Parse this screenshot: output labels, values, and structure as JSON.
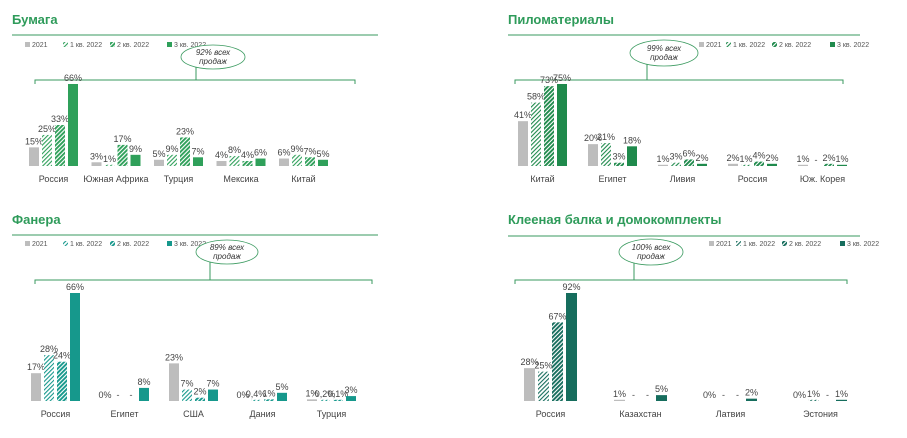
{
  "colors": {
    "gray": "#bdbdbd",
    "title_green": "#2e9b5a",
    "line_green": "#3a9a5f",
    "dark_green": "#1f8a4c",
    "mid_green": "#2fa05a",
    "teal": "#16988c",
    "dark_teal": "#166d5d",
    "cat_text": "#444444"
  },
  "chart_data": [
    {
      "type": "bar",
      "title": "Бумага",
      "legend": [
        "2021",
        "1 кв. 2022",
        "2 кв. 2022",
        "3 кв. 2022"
      ],
      "callout": [
        "92% всех",
        "продаж"
      ],
      "categories": [
        "Россия",
        "Южная Африка",
        "Турция",
        "Мексика",
        "Китай"
      ],
      "series": [
        {
          "name": "2021",
          "values": [
            15,
            3,
            5,
            4,
            6
          ],
          "labels": [
            "15%",
            "3%",
            "5%",
            "4%",
            "6%"
          ]
        },
        {
          "name": "1 кв. 2022",
          "values": [
            25,
            1,
            9,
            8,
            9
          ],
          "labels": [
            "25%",
            "1%",
            "9%",
            "8%",
            "9%"
          ]
        },
        {
          "name": "2 кв. 2022",
          "values": [
            33,
            17,
            23,
            4,
            7
          ],
          "labels": [
            "33%",
            "17%",
            "23%",
            "4%",
            "7%"
          ]
        },
        {
          "name": "3 кв. 2022",
          "values": [
            66,
            9,
            7,
            6,
            5
          ],
          "labels": [
            "66%",
            "9%",
            "7%",
            "6%",
            "5%"
          ]
        }
      ],
      "ylim": [
        0,
        66
      ]
    },
    {
      "type": "bar",
      "title": "Пиломатериалы",
      "legend": [
        "2021",
        "1 кв. 2022",
        "2 кв. 2022",
        "3 кв. 2022"
      ],
      "callout": [
        "99% всех",
        "продаж"
      ],
      "categories": [
        "Китай",
        "Египет",
        "Ливия",
        "Россия",
        "Юж. Корея"
      ],
      "series": [
        {
          "name": "2021",
          "values": [
            41,
            20,
            1,
            2,
            1
          ],
          "labels": [
            "41%",
            "20%",
            "1%",
            "2%",
            "1%"
          ]
        },
        {
          "name": "1 кв. 2022",
          "values": [
            58,
            21,
            3,
            1,
            0
          ],
          "labels": [
            "58%",
            "21%",
            "3%",
            "1%",
            "-"
          ]
        },
        {
          "name": "2 кв. 2022",
          "values": [
            73,
            3,
            6,
            4,
            2
          ],
          "labels": [
            "73%",
            "3%",
            "6%",
            "4%",
            "2%"
          ]
        },
        {
          "name": "3 кв. 2022",
          "values": [
            75,
            18,
            2,
            2,
            1
          ],
          "labels": [
            "75%",
            "18%",
            "2%",
            "2%",
            "1%"
          ]
        }
      ],
      "ylim": [
        0,
        75
      ]
    },
    {
      "type": "bar",
      "title": "Фанера",
      "legend": [
        "2021",
        "1 кв. 2022",
        "2 кв. 2022",
        "3 кв. 2022"
      ],
      "callout": [
        "89% всех",
        "продаж"
      ],
      "categories": [
        "Россия",
        "Египет",
        "США",
        "Дания",
        "Турция"
      ],
      "series": [
        {
          "name": "2021",
          "values": [
            17,
            0,
            23,
            0,
            1
          ],
          "labels": [
            "17%",
            "0%",
            "23%",
            "0%",
            "1%"
          ]
        },
        {
          "name": "1 кв. 2022",
          "values": [
            28,
            0,
            7,
            0.4,
            0.2
          ],
          "labels": [
            "28%",
            "-",
            "7%",
            "0,4%",
            "0,2%"
          ]
        },
        {
          "name": "2 кв. 2022",
          "values": [
            24,
            0,
            2,
            1,
            0.1
          ],
          "labels": [
            "24%",
            "-",
            "2%",
            "1%",
            "0,1%"
          ]
        },
        {
          "name": "3 кв. 2022",
          "values": [
            66,
            8,
            7,
            5,
            3
          ],
          "labels": [
            "66%",
            "8%",
            "7%",
            "5%",
            "3%"
          ]
        }
      ],
      "ylim": [
        0,
        66
      ]
    },
    {
      "type": "bar",
      "title": "Клееная балка и домокомплекты",
      "legend": [
        "2021",
        "1 кв. 2022",
        "2 кв. 2022",
        "3 кв. 2022"
      ],
      "callout": [
        "100% всех",
        "продаж"
      ],
      "categories": [
        "Россия",
        "Казахстан",
        "Латвия",
        "Эстония"
      ],
      "series": [
        {
          "name": "2021",
          "values": [
            28,
            1,
            0,
            0
          ],
          "labels": [
            "28%",
            "1%",
            "0%",
            "0%"
          ]
        },
        {
          "name": "1 кв. 2022",
          "values": [
            25,
            0,
            0,
            1
          ],
          "labels": [
            "25%",
            "-",
            "-",
            "1%"
          ]
        },
        {
          "name": "2 кв. 2022",
          "values": [
            67,
            0,
            0,
            0
          ],
          "labels": [
            "67%",
            "-",
            "-",
            "-"
          ]
        },
        {
          "name": "3 кв. 2022",
          "values": [
            92,
            5,
            2,
            1
          ],
          "labels": [
            "92%",
            "5%",
            "2%",
            "1%"
          ]
        }
      ],
      "ylim": [
        0,
        92
      ]
    }
  ]
}
